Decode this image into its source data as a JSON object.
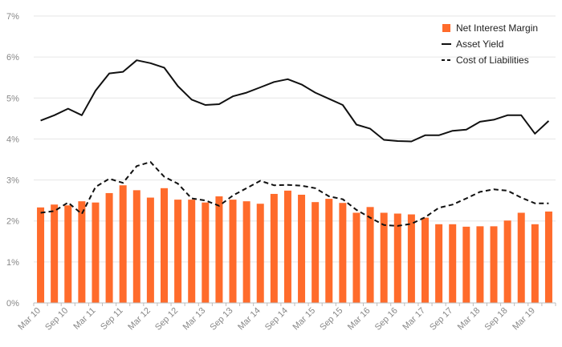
{
  "chart_data": {
    "type": "bar",
    "title": "",
    "xlabel": "",
    "ylabel": "",
    "ylim": [
      0,
      7
    ],
    "yticks": [
      "0%",
      "1%",
      "2%",
      "3%",
      "4%",
      "5%",
      "6%",
      "7%"
    ],
    "grid": true,
    "legend_position": "top-right",
    "categories": [
      "Mar 10",
      "Jun 10",
      "Sep 10",
      "Dec 10",
      "Mar 11",
      "Jun 11",
      "Sep 11",
      "Dec 11",
      "Mar 12",
      "Jun 12",
      "Sep 12",
      "Dec 12",
      "Mar 13",
      "Jun 13",
      "Sep 13",
      "Dec 13",
      "Mar 14",
      "Jun 14",
      "Sep 14",
      "Dec 14",
      "Mar 15",
      "Jun 15",
      "Sep 15",
      "Dec 15",
      "Mar 16",
      "Jun 16",
      "Sep 16",
      "Dec 16",
      "Mar 17",
      "Jun 17",
      "Sep 17",
      "Dec 17",
      "Mar 18",
      "Jun 18",
      "Sep 18",
      "Dec 18",
      "Mar 19",
      "Jun 19"
    ],
    "xtick_labels": [
      "Mar 10",
      "Sep 10",
      "Mar 11",
      "Sep 11",
      "Mar 12",
      "Sep 12",
      "Mar 13",
      "Sep 13",
      "Mar 14",
      "Sep 14",
      "Mar 15",
      "Sep 15",
      "Mar 16",
      "Sep 16",
      "Mar 17",
      "Sep 17",
      "Mar 18",
      "Sep 18",
      "Mar 19"
    ],
    "series": [
      {
        "name": "Net Interest Margin",
        "kind": "bar",
        "color": "#ff6b2b",
        "values": [
          2.33,
          2.4,
          2.38,
          2.48,
          2.45,
          2.68,
          2.87,
          2.75,
          2.57,
          2.8,
          2.52,
          2.52,
          2.45,
          2.6,
          2.52,
          2.48,
          2.42,
          2.66,
          2.74,
          2.64,
          2.46,
          2.54,
          2.44,
          2.2,
          2.34,
          2.2,
          2.18,
          2.16,
          2.08,
          1.92,
          1.92,
          1.86,
          1.87,
          1.87,
          2.01,
          2.2,
          1.92,
          2.23
        ]
      },
      {
        "name": "Asset Yield",
        "kind": "line",
        "color": "#111111",
        "dash": "solid",
        "values": [
          4.45,
          4.58,
          4.74,
          4.58,
          5.18,
          5.6,
          5.64,
          5.92,
          5.85,
          5.74,
          5.29,
          4.96,
          4.83,
          4.85,
          5.04,
          5.13,
          5.26,
          5.39,
          5.46,
          5.33,
          5.13,
          4.98,
          4.83,
          4.35,
          4.25,
          3.98,
          3.95,
          3.94,
          4.09,
          4.09,
          4.2,
          4.23,
          4.42,
          4.47,
          4.58,
          4.58,
          4.13,
          4.44
        ]
      },
      {
        "name": "Cost of Liabilities",
        "kind": "line",
        "color": "#111111",
        "dash": "dashed",
        "values": [
          2.2,
          2.24,
          2.45,
          2.17,
          2.83,
          3.03,
          2.93,
          3.34,
          3.44,
          3.08,
          2.91,
          2.55,
          2.5,
          2.37,
          2.62,
          2.8,
          2.98,
          2.87,
          2.88,
          2.86,
          2.8,
          2.6,
          2.53,
          2.27,
          2.08,
          1.9,
          1.88,
          1.93,
          2.09,
          2.32,
          2.4,
          2.55,
          2.71,
          2.77,
          2.74,
          2.57,
          2.43,
          2.43
        ]
      }
    ]
  }
}
